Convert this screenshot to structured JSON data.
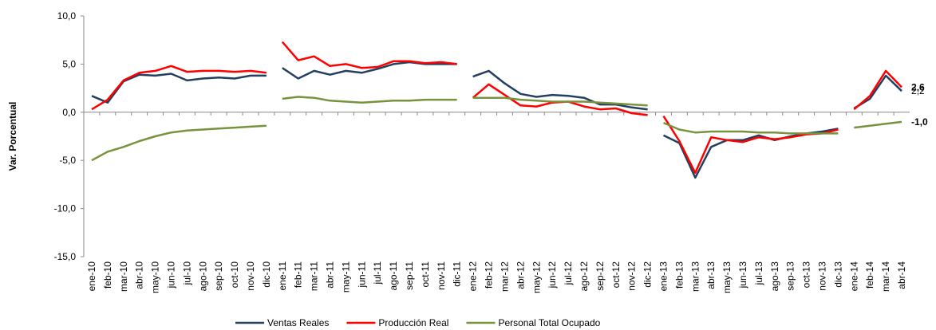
{
  "chart_data": {
    "type": "line",
    "y_label": "Var. Porcentual",
    "categories": [
      "ene-10",
      "feb-10",
      "mar-10",
      "abr-10",
      "may-10",
      "jun-10",
      "jul-10",
      "ago-10",
      "sep-10",
      "oct-10",
      "nov-10",
      "dic-10",
      "ene-11",
      "feb-11",
      "mar-11",
      "abr-11",
      "may-11",
      "jun-11",
      "jul-11",
      "ago-11",
      "sep-11",
      "oct-11",
      "nov-11",
      "dic-11",
      "ene-12",
      "feb-12",
      "mar-12",
      "abr-12",
      "may-12",
      "jun-12",
      "jul-12",
      "ago-12",
      "sep-12",
      "oct-12",
      "nov-12",
      "dic-12",
      "ene-13",
      "feb-13",
      "mar-13",
      "abr-13",
      "may-13",
      "jun-13",
      "jul-13",
      "ago-13",
      "sep-13",
      "oct-13",
      "nov-13",
      "dic-13",
      "ene-14",
      "feb-14",
      "mar-14",
      "abr-14"
    ],
    "series": [
      {
        "name": "Ventas Reales",
        "color": "#243f60",
        "values": [
          1.7,
          1.0,
          3.2,
          3.9,
          3.8,
          4.0,
          3.3,
          3.5,
          3.6,
          3.5,
          3.8,
          3.8,
          4.6,
          3.5,
          4.3,
          3.9,
          4.3,
          4.1,
          4.5,
          5.0,
          5.2,
          5.0,
          5.0,
          5.0,
          3.7,
          4.3,
          3.0,
          1.9,
          1.6,
          1.8,
          1.7,
          1.5,
          0.8,
          0.8,
          0.5,
          0.3,
          -2.4,
          -3.2,
          -6.8,
          -3.6,
          -2.9,
          -2.9,
          -2.4,
          -2.9,
          -2.5,
          -2.2,
          -2.0,
          -1.7,
          0.4,
          1.4,
          3.8,
          2.2
        ],
        "value_labels": [
          null,
          null,
          null,
          null,
          null,
          null,
          null,
          null,
          null,
          null,
          null,
          null,
          null,
          null,
          null,
          null,
          null,
          null,
          null,
          null,
          null,
          null,
          null,
          null,
          null,
          null,
          null,
          null,
          null,
          null,
          null,
          null,
          null,
          null,
          null,
          null,
          null,
          null,
          null,
          null,
          null,
          null,
          null,
          null,
          null,
          null,
          null,
          null,
          null,
          null,
          null,
          "2,2"
        ],
        "label_color": "#333333"
      },
      {
        "name": "Producción Real",
        "color": "#ff0000",
        "values": [
          0.3,
          1.3,
          3.3,
          4.1,
          4.3,
          4.8,
          4.2,
          4.3,
          4.3,
          4.2,
          4.3,
          4.1,
          7.3,
          5.4,
          5.8,
          4.8,
          5.0,
          4.6,
          4.7,
          5.3,
          5.3,
          5.1,
          5.2,
          5.0,
          1.5,
          2.9,
          1.8,
          0.7,
          0.6,
          1.0,
          1.1,
          0.6,
          0.3,
          0.4,
          -0.1,
          -0.3,
          -0.4,
          -3.0,
          -6.3,
          -2.6,
          -2.9,
          -3.1,
          -2.6,
          -2.8,
          -2.6,
          -2.3,
          -2.2,
          -1.8,
          0.3,
          1.7,
          4.3,
          2.6
        ],
        "value_labels": [
          null,
          null,
          null,
          null,
          null,
          null,
          null,
          null,
          null,
          null,
          null,
          null,
          null,
          null,
          null,
          null,
          null,
          null,
          null,
          null,
          null,
          null,
          null,
          null,
          null,
          null,
          null,
          null,
          null,
          null,
          null,
          null,
          null,
          null,
          null,
          null,
          null,
          null,
          null,
          null,
          null,
          null,
          null,
          null,
          null,
          null,
          null,
          null,
          null,
          null,
          null,
          "2,6"
        ],
        "label_color": "#ff0000"
      },
      {
        "name": "Personal Total Ocupado",
        "color": "#77933c",
        "values": [
          -5.0,
          -4.1,
          -3.6,
          -3.0,
          -2.5,
          -2.1,
          -1.9,
          -1.8,
          -1.7,
          -1.6,
          -1.5,
          -1.4,
          1.4,
          1.6,
          1.5,
          1.2,
          1.1,
          1.0,
          1.1,
          1.2,
          1.2,
          1.3,
          1.3,
          1.3,
          1.5,
          1.5,
          1.5,
          1.3,
          1.2,
          1.1,
          1.1,
          1.1,
          1.0,
          0.9,
          0.8,
          0.7,
          -1.1,
          -1.8,
          -2.1,
          -2.0,
          -2.0,
          -2.0,
          -2.1,
          -2.1,
          -2.2,
          -2.2,
          -2.2,
          -2.2,
          -1.6,
          -1.4,
          -1.2,
          -1.0
        ],
        "value_labels": [
          null,
          null,
          null,
          null,
          null,
          null,
          null,
          null,
          null,
          null,
          null,
          null,
          null,
          null,
          null,
          null,
          null,
          null,
          null,
          null,
          null,
          null,
          null,
          null,
          null,
          null,
          null,
          null,
          null,
          null,
          null,
          null,
          null,
          null,
          null,
          null,
          null,
          null,
          null,
          null,
          null,
          null,
          null,
          null,
          null,
          null,
          null,
          null,
          null,
          null,
          null,
          "-1,0"
        ],
        "label_color": "#00b050"
      }
    ],
    "ylim": [
      -15,
      10
    ],
    "yticks": [
      {
        "value": -15,
        "label": "-15,0"
      },
      {
        "value": -10,
        "label": "-10,0"
      },
      {
        "value": -5,
        "label": "-5,0"
      },
      {
        "value": 0,
        "label": "0,0"
      },
      {
        "value": 5,
        "label": "5,0"
      },
      {
        "value": 10,
        "label": "10,0"
      }
    ],
    "legend": "bottom"
  }
}
